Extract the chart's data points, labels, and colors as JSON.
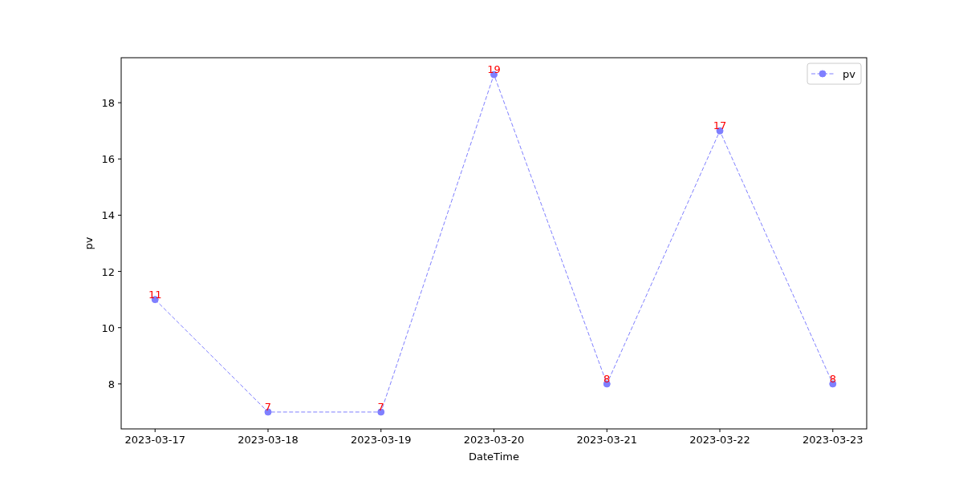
{
  "chart_data": {
    "type": "line",
    "xlabel": "DateTime",
    "ylabel": "pv",
    "x": [
      "2023-03-17",
      "2023-03-18",
      "2023-03-19",
      "2023-03-20",
      "2023-03-21",
      "2023-03-22",
      "2023-03-23"
    ],
    "series": [
      {
        "name": "pv",
        "color": "#7f7fff",
        "values": [
          11,
          7,
          7,
          19,
          8,
          17,
          8
        ]
      }
    ],
    "xlim": [
      "2023-03-16T16:48",
      "2023-03-23T07:12"
    ],
    "xticks": [
      "2023-03-17",
      "2023-03-18",
      "2023-03-19",
      "2023-03-20",
      "2023-03-21",
      "2023-03-22",
      "2023-03-23"
    ],
    "ylim": [
      6.4,
      19.6
    ],
    "yticks": [
      8,
      10,
      12,
      14,
      16,
      18
    ],
    "marker": "circle",
    "line_style": "dashed",
    "legend": "top right",
    "data_labels": true,
    "grid": false
  }
}
